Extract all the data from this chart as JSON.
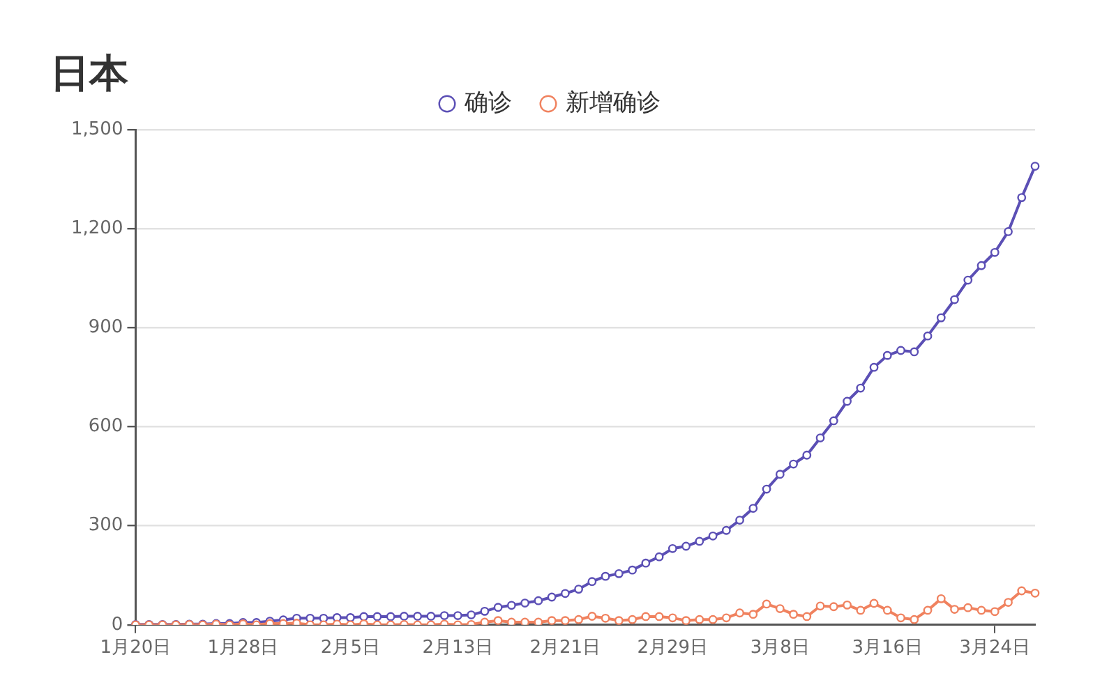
{
  "chart_data": {
    "type": "line",
    "title": "日本",
    "categories": [
      "1月20日",
      null,
      null,
      null,
      null,
      null,
      null,
      null,
      "1月28日",
      null,
      null,
      null,
      null,
      null,
      null,
      null,
      "2月5日",
      null,
      null,
      null,
      null,
      null,
      null,
      null,
      "2月13日",
      null,
      null,
      null,
      null,
      null,
      null,
      null,
      "2月21日",
      null,
      null,
      null,
      null,
      null,
      null,
      null,
      "2月29日",
      null,
      null,
      null,
      null,
      null,
      null,
      null,
      "3月8日",
      null,
      null,
      null,
      null,
      null,
      null,
      null,
      "3月16日",
      null,
      null,
      null,
      null,
      null,
      null,
      null,
      "3月24日",
      null,
      null,
      null
    ],
    "series": [
      {
        "name": "确诊",
        "color": "#5b4fb5",
        "values": [
          1,
          1,
          1,
          1,
          2,
          2,
          4,
          4,
          7,
          7,
          11,
          15,
          20,
          20,
          20,
          22,
          22,
          25,
          25,
          25,
          26,
          26,
          26,
          28,
          28,
          30,
          41,
          53,
          59,
          66,
          73,
          84,
          95,
          108,
          131,
          147,
          155,
          166,
          187,
          206,
          231,
          238,
          253,
          269,
          286,
          317,
          353,
          411,
          456,
          487,
          514,
          566,
          618,
          677,
          717,
          780,
          816,
          831,
          827,
          875,
          930,
          985,
          1044,
          1088,
          1128,
          1191,
          1294,
          1389
        ]
      },
      {
        "name": "新增确诊",
        "color": "#f0825f",
        "values": [
          0,
          0,
          0,
          0,
          1,
          0,
          2,
          0,
          3,
          0,
          4,
          4,
          5,
          0,
          0,
          2,
          0,
          3,
          0,
          0,
          1,
          0,
          0,
          2,
          0,
          1,
          8,
          13,
          8,
          8,
          8,
          13,
          13,
          16,
          26,
          20,
          13,
          16,
          25,
          25,
          21,
          13,
          16,
          16,
          21,
          36,
          32,
          63,
          49,
          32,
          25,
          57,
          55,
          60,
          44,
          65,
          44,
          21,
          16,
          44,
          79,
          47,
          52,
          44,
          40,
          68,
          103,
          96
        ]
      }
    ],
    "ylim": [
      0,
      1500
    ],
    "yticks": [
      0,
      {
        "value": 300,
        "label": "300"
      },
      {
        "value": 600,
        "label": "600"
      },
      {
        "value": 900,
        "label": "900"
      },
      {
        "value": 1200,
        "label": "1,200"
      },
      {
        "value": 1500,
        "label": "1,500"
      }
    ],
    "grid": "y",
    "legend": "top",
    "marker": "circle",
    "line_style": "solid"
  }
}
